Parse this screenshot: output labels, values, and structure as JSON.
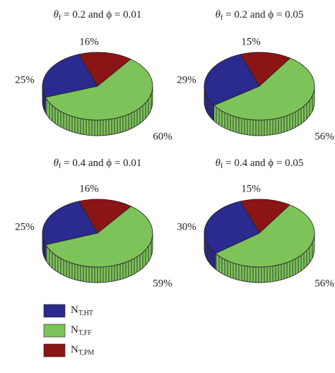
{
  "chart_data": [
    {
      "type": "pie",
      "title_parts": [
        "θ",
        "f",
        " = 0.2 and ϕ = 0.01"
      ],
      "values": [
        25,
        60,
        16
      ],
      "value_labels": [
        "25%",
        "60%",
        "16%"
      ]
    },
    {
      "type": "pie",
      "title_parts": [
        "θ",
        "f",
        " = 0.2 and ϕ = 0.05"
      ],
      "values": [
        29,
        56,
        15
      ],
      "value_labels": [
        "29%",
        "56%",
        "15%"
      ]
    },
    {
      "type": "pie",
      "title_parts": [
        "θ",
        "f",
        " = 0.4 and ϕ = 0.01"
      ],
      "values": [
        25,
        59,
        16
      ],
      "value_labels": [
        "25%",
        "59%",
        "16%"
      ]
    },
    {
      "type": "pie",
      "title_parts": [
        "θ",
        "f",
        " = 0.4 and ϕ = 0.05"
      ],
      "values": [
        30,
        56,
        15
      ],
      "value_labels": [
        "30%",
        "56%",
        "15%"
      ]
    }
  ],
  "legend": [
    {
      "symbol": "N",
      "subscript": "T,HT",
      "color": "#2b2a8e"
    },
    {
      "symbol": "N",
      "subscript": "T,FF",
      "color": "#7dc35a"
    },
    {
      "symbol": "N",
      "subscript": "T,PM",
      "color": "#8b1414"
    }
  ]
}
